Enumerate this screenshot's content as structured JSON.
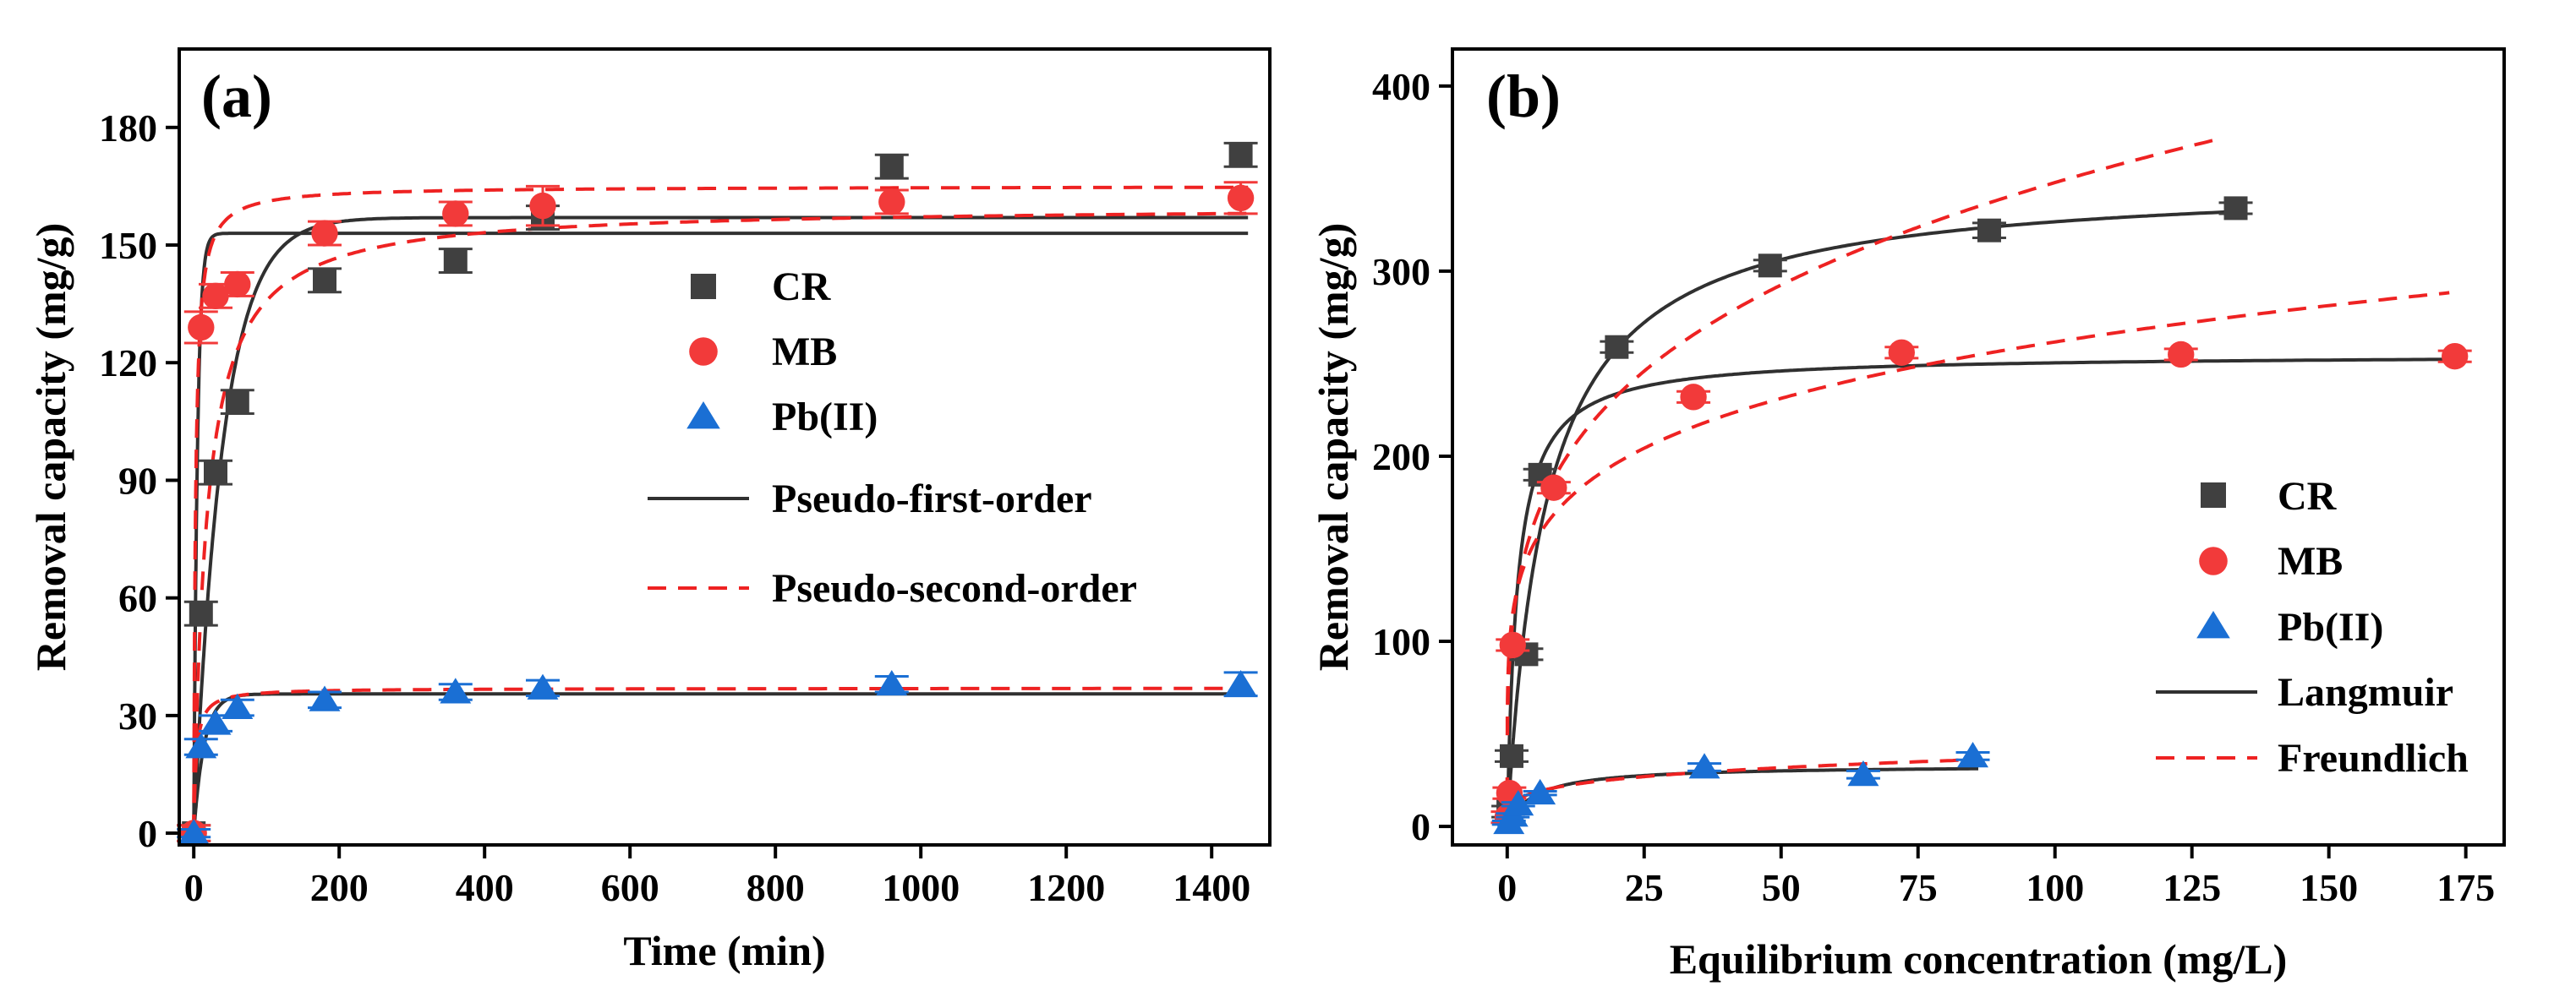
{
  "colors": {
    "CR": "#404040",
    "MB": "#f23a3a",
    "Pb": "#1a6fd4",
    "fit1": "#303030",
    "fit2": "#ee2222",
    "axis": "#000000"
  },
  "chart_data": [
    {
      "type": "scatter",
      "panel": "(a)",
      "title": "",
      "xlabel": "Time (min)",
      "ylabel": "Removal capacity (mg/g)",
      "xlim": [
        -20,
        1480
      ],
      "ylim": [
        -3,
        200
      ],
      "xticks": [
        0,
        200,
        400,
        600,
        800,
        1000,
        1200,
        1400
      ],
      "yticks": [
        0,
        30,
        60,
        90,
        120,
        150,
        180
      ],
      "legend_position": "center-right",
      "legend": {
        "CR": "CR",
        "MB": "MB",
        "Pb": "Pb(II)",
        "fit1": "Pseudo-first-order",
        "fit2": "Pseudo-second-order"
      },
      "series": [
        {
          "name": "CR",
          "marker": "square",
          "x": [
            0,
            10,
            30,
            60,
            180,
            360,
            480,
            960,
            1440
          ],
          "y": [
            0,
            56,
            92,
            110,
            141,
            146,
            157,
            170,
            173
          ],
          "err": [
            2,
            3,
            3,
            3,
            3,
            3,
            3,
            3,
            3
          ]
        },
        {
          "name": "MB",
          "marker": "circle",
          "x": [
            0,
            10,
            30,
            60,
            180,
            360,
            480,
            960,
            1440
          ],
          "y": [
            0,
            129,
            137,
            140,
            153,
            158,
            160,
            161,
            162
          ],
          "err": [
            2,
            4,
            3,
            3,
            3,
            3,
            5,
            3,
            4
          ]
        },
        {
          "name": "Pb(II)",
          "marker": "triangle",
          "x": [
            0,
            10,
            30,
            60,
            180,
            360,
            480,
            960,
            1440
          ],
          "y": [
            0,
            22,
            28,
            32,
            34,
            36,
            37,
            38,
            38
          ],
          "err": [
            1,
            2,
            2,
            2,
            2,
            2,
            2,
            2,
            3
          ]
        }
      ],
      "fits": [
        {
          "name": "CR pseudo-first-order",
          "style": "solid",
          "qe": 157,
          "k": 0.025
        },
        {
          "name": "MB pseudo-first-order",
          "style": "solid",
          "qe": 153,
          "k": 0.2
        },
        {
          "name": "Pb(II) pseudo-first-order",
          "style": "solid",
          "qe": 35.5,
          "k": 0.07
        },
        {
          "name": "CR pseudo-second-order",
          "style": "dashed",
          "qe": 160,
          "k": 0.00035
        },
        {
          "name": "MB pseudo-second-order",
          "style": "dashed",
          "qe": 165,
          "k": 0.0025
        },
        {
          "name": "Pb(II) pseudo-second-order",
          "style": "dashed",
          "qe": 37,
          "k": 0.008
        }
      ]
    },
    {
      "type": "scatter",
      "panel": "(b)",
      "title": "",
      "xlabel": "Equilibrium concentration (mg/L)",
      "ylabel": "Removal capacity (mg/g)",
      "xlim": [
        -10,
        182
      ],
      "ylim": [
        -10,
        420
      ],
      "xticks": [
        0,
        25,
        50,
        75,
        100,
        125,
        150,
        175
      ],
      "yticks": [
        0,
        100,
        200,
        300,
        400
      ],
      "legend_position": "bottom-right",
      "legend": {
        "CR": "CR",
        "MB": "MB",
        "Pb": "Pb(II)",
        "fit1": "Langmuir",
        "fit2": "Freundlich"
      },
      "series": [
        {
          "name": "CR",
          "marker": "square",
          "x": [
            0.2,
            0.8,
            3.5,
            6,
            20,
            48,
            88,
            133
          ],
          "y": [
            8,
            38,
            93,
            190,
            259,
            303,
            322,
            334
          ],
          "err": [
            3,
            3,
            3,
            3,
            3,
            3,
            4,
            3
          ]
        },
        {
          "name": "MB",
          "marker": "circle",
          "x": [
            0.1,
            0.4,
            1,
            8.5,
            34,
            72,
            123,
            173
          ],
          "y": [
            5,
            18,
            98,
            183,
            232,
            256,
            255,
            254
          ],
          "err": [
            3,
            3,
            3,
            3,
            3,
            3,
            3,
            3
          ]
        },
        {
          "name": "Pb(II)",
          "marker": "triangle",
          "x": [
            0.3,
            1,
            2,
            6,
            36,
            65,
            85
          ],
          "y": [
            2,
            6,
            12,
            18,
            32,
            28,
            38
          ],
          "err": [
            1,
            1,
            1,
            1,
            2,
            2,
            2
          ]
        }
      ],
      "fits": [
        {
          "name": "CR Langmuir",
          "style": "solid",
          "model": "langmuir",
          "qm": 350,
          "KL": 0.14,
          "xmax": 133
        },
        {
          "name": "MB Langmuir",
          "style": "solid",
          "model": "langmuir",
          "qm": 255,
          "KL": 0.55,
          "xmax": 173
        },
        {
          "name": "Pb(II) Langmuir",
          "style": "solid",
          "model": "langmuir",
          "qm": 33,
          "KL": 0.2,
          "xmax": 86
        },
        {
          "name": "CR Freundlich",
          "style": "dashed",
          "model": "freundlich",
          "KF": 110,
          "n": 4,
          "xmax": 130
        },
        {
          "name": "MB Freundlich",
          "style": "dashed",
          "model": "freundlich",
          "KF": 115,
          "n": 5.6,
          "xmax": 172
        },
        {
          "name": "Pb(II) Freundlich",
          "style": "dashed",
          "model": "freundlich",
          "KF": 12.5,
          "n": 4.2,
          "xmax": 86
        }
      ]
    }
  ]
}
